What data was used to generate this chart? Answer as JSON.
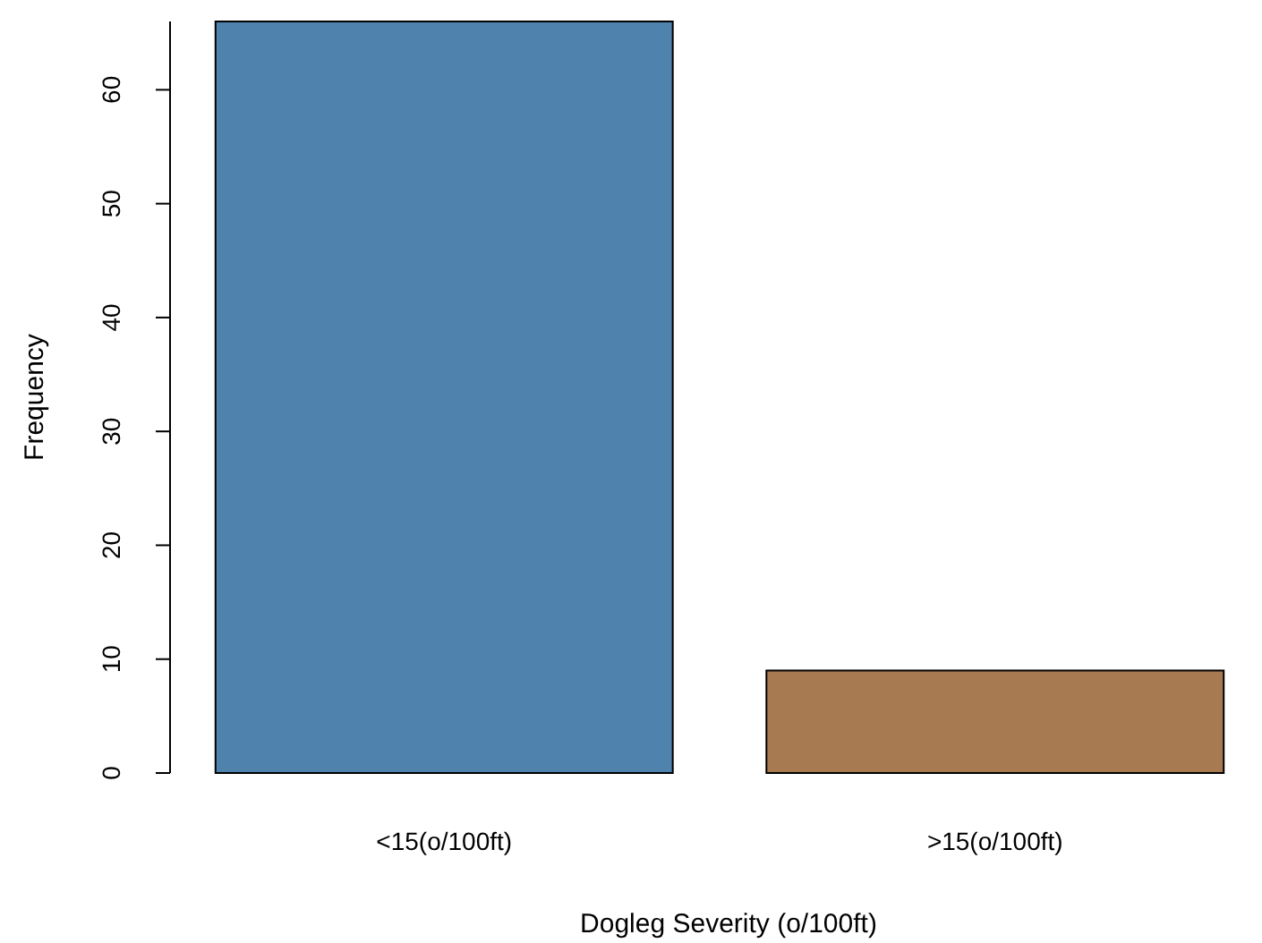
{
  "chart_data": {
    "type": "bar",
    "xlabel": "Dogleg Severity (o/100ft)",
    "ylabel": "Frequency",
    "categories": [
      "<15(o/100ft)",
      ">15(o/100ft)"
    ],
    "values": [
      66,
      9
    ],
    "colors": [
      "#5082ae",
      "#a87a51"
    ],
    "ylim": [
      0,
      66
    ],
    "yticks": [
      0,
      10,
      20,
      30,
      40,
      50,
      60
    ],
    "grid": false
  }
}
